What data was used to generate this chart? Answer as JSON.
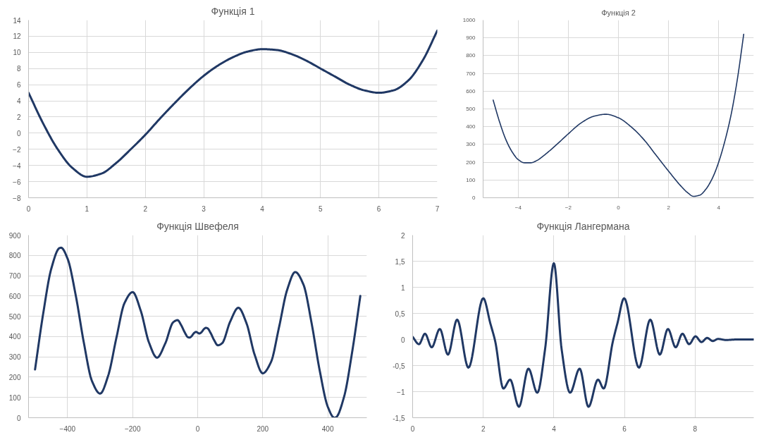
{
  "chart_data": [
    {
      "type": "line",
      "title": "Функція 1",
      "xlim": [
        0,
        7
      ],
      "xticks": [
        0,
        1,
        2,
        3,
        4,
        5,
        6,
        7
      ],
      "ylim": [
        -8,
        14
      ],
      "yticks": [
        -8,
        -6,
        -4,
        -2,
        0,
        2,
        4,
        6,
        8,
        10,
        12,
        14
      ],
      "grid": true,
      "x": [
        0,
        0.25,
        0.5,
        0.75,
        1,
        1.25,
        1.5,
        1.75,
        2,
        2.25,
        2.5,
        2.75,
        3,
        3.25,
        3.5,
        3.75,
        4,
        4.25,
        4.5,
        4.75,
        5,
        5.25,
        5.5,
        5.75,
        6,
        6.25,
        6.5,
        6.75,
        7
      ],
      "series": [
        {
          "color": "#203864",
          "values": [
            5,
            1.2,
            -2.0,
            -4.3,
            -5.4,
            -5.0,
            -3.7,
            -2.0,
            -0.2,
            1.8,
            3.7,
            5.5,
            7.1,
            8.4,
            9.4,
            10.1,
            10.4,
            10.3,
            9.8,
            9.0,
            8.0,
            7.0,
            6.0,
            5.3,
            5.0,
            5.3,
            6.5,
            9.0,
            12.7
          ]
        }
      ]
    },
    {
      "type": "line",
      "title": "Функція 2",
      "xlim": [
        -5.4,
        5.4
      ],
      "xticks": [
        -4,
        -2,
        0,
        2,
        4
      ],
      "ylim": [
        0,
        1000
      ],
      "yticks": [
        0,
        100,
        200,
        300,
        400,
        500,
        600,
        700,
        800,
        900,
        1000
      ],
      "grid": true,
      "x": [
        -5,
        -4.75,
        -4.5,
        -4.25,
        -4,
        -3.75,
        -3.5,
        -3.25,
        -3,
        -2.5,
        -2,
        -1.5,
        -1,
        -0.5,
        0,
        0.5,
        1,
        1.5,
        2,
        2.5,
        2.75,
        3,
        3.25,
        3.5,
        3.75,
        4,
        4.25,
        4.5,
        4.75,
        5
      ],
      "series": [
        {
          "color": "#203864",
          "values": [
            550,
            430,
            330,
            260,
            215,
            197,
            197,
            210,
            235,
            295,
            360,
            420,
            458,
            470,
            450,
            400,
            330,
            240,
            150,
            65,
            30,
            8,
            15,
            50,
            110,
            200,
            320,
            470,
            670,
            920
          ]
        }
      ]
    },
    {
      "type": "line",
      "title": "Функція Швефеля",
      "xlim": [
        -520,
        520
      ],
      "xticks": [
        -400,
        -200,
        0,
        200,
        400
      ],
      "ylim": [
        0,
        900
      ],
      "yticks": [
        0,
        100,
        200,
        300,
        400,
        500,
        600,
        700,
        800,
        900
      ],
      "grid": true,
      "x": [
        -500,
        -475,
        -450,
        -425,
        -420,
        -400,
        -375,
        -350,
        -325,
        -300,
        -275,
        -250,
        -225,
        -200,
        -175,
        -150,
        -125,
        -100,
        -75,
        -62,
        -50,
        -40,
        -30,
        -25,
        -20,
        -10,
        -5,
        0,
        5,
        10,
        20,
        25,
        30,
        40,
        50,
        62,
        75,
        100,
        125,
        150,
        175,
        200,
        225,
        250,
        275,
        300,
        325,
        350,
        375,
        400,
        420,
        425,
        450,
        475,
        500
      ],
      "series": [
        {
          "color": "#203864",
          "values": [
            238,
            513,
            735,
            836,
            838,
            784,
            604,
            370,
            181,
            119,
            208,
            393,
            565,
            619,
            527,
            372,
            296,
            365,
            471,
            481,
            454,
            421,
            397,
            395,
            400,
            419,
            423,
            419,
            415,
            419,
            438,
            443,
            441,
            417,
            384,
            357,
            367,
            474,
            542,
            466,
            311,
            219,
            273,
            445,
            630,
            718,
            657,
            468,
            234,
            54,
            0,
            2,
            103,
            325,
            600
          ]
        }
      ]
    },
    {
      "type": "line",
      "title": "Функція Лангермана",
      "xlim": [
        0,
        9.66
      ],
      "xticks": [
        0,
        2,
        4,
        6,
        8
      ],
      "ylim": [
        -1.5,
        2
      ],
      "yticks": [
        {
          "value": -1.5,
          "label": "-1,5"
        },
        -1,
        {
          "value": -0.5,
          "label": "-0,5"
        },
        0,
        {
          "value": 0.5,
          "label": "0,5"
        },
        1,
        {
          "value": 1.5,
          "label": "1,5"
        },
        2
      ],
      "grid": true,
      "x": [
        0,
        0.18,
        0.35,
        0.54,
        0.77,
        1.0,
        1.26,
        1.58,
        2.0,
        2.2,
        2.34,
        2.57,
        2.76,
        3.01,
        3.28,
        3.53,
        3.75,
        4.0,
        4.22,
        4.46,
        4.73,
        4.98,
        5.25,
        5.41,
        5.67,
        5.8,
        5.99,
        6.41,
        6.73,
        7.0,
        7.23,
        7.45,
        7.64,
        7.83,
        8.01,
        8.18,
        8.34,
        8.5,
        8.65,
        8.87,
        9.2,
        9.66
      ],
      "series": [
        {
          "color": "#203864",
          "values": [
            0.05,
            -0.09,
            0.11,
            -0.15,
            0.2,
            -0.29,
            0.38,
            -0.54,
            0.79,
            0.31,
            -0.04,
            -0.94,
            -0.77,
            -1.29,
            -0.56,
            -1.02,
            -0.19,
            1.46,
            -0.19,
            -1.02,
            -0.56,
            -1.29,
            -0.77,
            -0.94,
            -0.04,
            0.31,
            0.79,
            -0.54,
            0.38,
            -0.29,
            0.2,
            -0.15,
            0.11,
            -0.09,
            0.06,
            -0.05,
            0.03,
            -0.03,
            0.01,
            -0.01,
            0,
            0
          ]
        }
      ]
    }
  ]
}
